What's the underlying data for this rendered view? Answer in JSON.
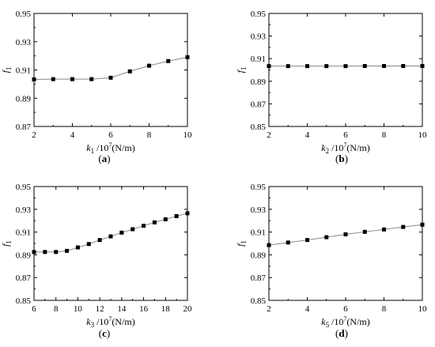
{
  "chart_data": [
    {
      "type": "line",
      "panel_label_parts": [
        "(",
        "a",
        ")"
      ],
      "xlabel": "k1 /10^7(N/m)",
      "ylabel": "f1",
      "x_ticks": [
        "2",
        "4",
        "6",
        "8",
        "10"
      ],
      "y_ticks": [
        "0.87",
        "0.89",
        "0.91",
        "0.93",
        "0.95"
      ],
      "xlim": [
        2,
        10
      ],
      "ylim": [
        0.87,
        0.95
      ],
      "series": [
        {
          "x": [
            2,
            3,
            4,
            5,
            6,
            7,
            8,
            9,
            10
          ],
          "y": [
            0.9033,
            0.9035,
            0.9035,
            0.9035,
            0.9045,
            0.909,
            0.913,
            0.9163,
            0.919
          ]
        }
      ]
    },
    {
      "type": "line",
      "panel_label_parts": [
        "(",
        "b",
        ")"
      ],
      "xlabel": "k2 /10^7(N/m)",
      "ylabel": "f1",
      "x_ticks": [
        "2",
        "4",
        "6",
        "8",
        "10"
      ],
      "y_ticks": [
        "0.85",
        "0.87",
        "0.89",
        "0.91",
        "0.93",
        "0.95"
      ],
      "xlim": [
        2,
        10
      ],
      "ylim": [
        0.85,
        0.95
      ],
      "series": [
        {
          "x": [
            2,
            3,
            4,
            5,
            6,
            7,
            8,
            9,
            10
          ],
          "y": [
            0.9034,
            0.9034,
            0.9034,
            0.9034,
            0.9034,
            0.9035,
            0.9035,
            0.9035,
            0.9035
          ]
        }
      ]
    },
    {
      "type": "line",
      "panel_label_parts": [
        "(",
        "c",
        ")"
      ],
      "xlabel": "k3 /10^7(N/m)",
      "ylabel": "f1",
      "x_ticks": [
        "6",
        "8",
        "10",
        "12",
        "14",
        "16",
        "18",
        "20"
      ],
      "y_ticks": [
        "0.85",
        "0.87",
        "0.89",
        "0.91",
        "0.93",
        "0.95"
      ],
      "xlim": [
        6,
        20
      ],
      "ylim": [
        0.85,
        0.95
      ],
      "series": [
        {
          "x": [
            6,
            7,
            8,
            9,
            10,
            11,
            12,
            13,
            14,
            15,
            16,
            17,
            18,
            19,
            20
          ],
          "y": [
            0.8925,
            0.8925,
            0.8925,
            0.8935,
            0.8965,
            0.8995,
            0.903,
            0.9062,
            0.9095,
            0.9125,
            0.9155,
            0.9185,
            0.9212,
            0.924,
            0.9265
          ]
        }
      ]
    },
    {
      "type": "line",
      "panel_label_parts": [
        "(",
        "d",
        ")"
      ],
      "xlabel": "k5 /10^7(N/m)",
      "ylabel": "f1",
      "x_ticks": [
        "2",
        "4",
        "6",
        "8",
        "10"
      ],
      "y_ticks": [
        "0.85",
        "0.87",
        "0.89",
        "0.91",
        "0.93",
        "0.95"
      ],
      "xlim": [
        2,
        10
      ],
      "ylim": [
        0.85,
        0.95
      ],
      "series": [
        {
          "x": [
            2,
            3,
            4,
            5,
            6,
            7,
            8,
            9,
            10
          ],
          "y": [
            0.8985,
            0.9008,
            0.903,
            0.9055,
            0.908,
            0.9102,
            0.9123,
            0.9145,
            0.9165
          ]
        }
      ]
    }
  ],
  "style": {
    "line_color": "#888888",
    "marker_color": "#000000",
    "axis_color": "#000000"
  }
}
